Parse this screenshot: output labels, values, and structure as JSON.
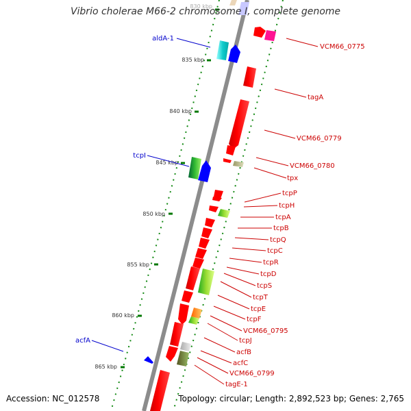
{
  "header": {
    "title": "Vibrio cholerae M66-2 chromosome I, complete genome"
  },
  "footer": {
    "accession": "Accession: NC_012578",
    "topology": "Topology: circular; Length: 2,892,523 bp; Genes: 2,765"
  },
  "colors": {
    "backbone": "#8c8c8c",
    "forward_gene": "#0000ff",
    "reverse_gene": "#ff0000",
    "tick": "#007700",
    "label_left": "#0000cc",
    "label_right": "#cc0000"
  },
  "ticks": [
    "830 kbp",
    "835 kbp",
    "840 kbp",
    "845 kbp",
    "850 kbp",
    "855 kbp",
    "860 kbp",
    "865 kbp"
  ],
  "left_labels": [
    "aldA-1",
    "tcpI",
    "acfA"
  ],
  "right_labels": [
    "VCM66_0775",
    "tagA",
    "VCM66_0779",
    "VCM66_0780",
    "tpx",
    "tcpP",
    "tcpH",
    "tcpA",
    "tcpB",
    "tcpQ",
    "tcpC",
    "tcpR",
    "tcpD",
    "tcpS",
    "tcpT",
    "tcpE",
    "tcpF",
    "VCM66_0795",
    "tcpJ",
    "acfB",
    "acfC",
    "VCM66_0799",
    "tagE-1"
  ]
}
